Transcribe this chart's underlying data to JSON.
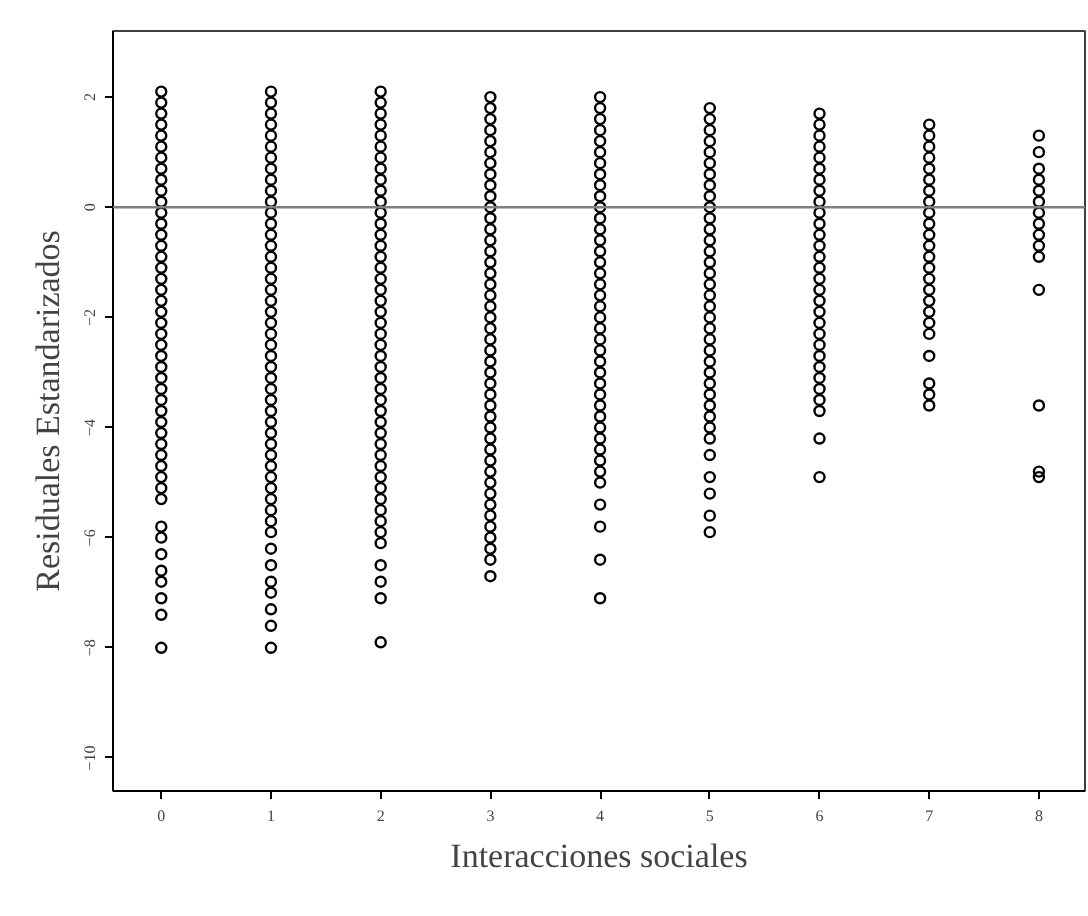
{
  "chart_data": {
    "type": "scatter",
    "xlabel": "Interacciones sociales",
    "ylabel": "Residuales Estandarizados",
    "xlim": [
      -0.44,
      8.42
    ],
    "ylim": [
      -10.6,
      3.2
    ],
    "xticks": [
      0,
      1,
      2,
      3,
      4,
      5,
      6,
      7,
      8
    ],
    "yticks": [
      -10,
      -8,
      -6,
      -4,
      -2,
      0,
      2
    ],
    "grid": false,
    "marker": "circle",
    "ref_lines": [
      {
        "axis": "y",
        "value": 0,
        "color": "#808080"
      }
    ],
    "series": [
      {
        "color": "#000000",
        "x": [
          0,
          0,
          0,
          0,
          0,
          0,
          0,
          0,
          0,
          0,
          0,
          0,
          0,
          0,
          0,
          0,
          0,
          0,
          0,
          0,
          0,
          0,
          0,
          0,
          0,
          0,
          0,
          0,
          0,
          0,
          0,
          0,
          0,
          0,
          0,
          0,
          0,
          0,
          0,
          0,
          0,
          0,
          0,
          0,
          0,
          0
        ],
        "values": [
          2.1,
          1.9,
          1.7,
          1.5,
          1.3,
          1.1,
          0.9,
          0.7,
          0.5,
          0.3,
          0.1,
          -0.1,
          -0.3,
          -0.5,
          -0.7,
          -0.9,
          -1.1,
          -1.3,
          -1.5,
          -1.7,
          -1.9,
          -2.1,
          -2.3,
          -2.5,
          -2.7,
          -2.9,
          -3.1,
          -3.3,
          -3.5,
          -3.7,
          -3.9,
          -4.1,
          -4.3,
          -4.5,
          -4.7,
          -4.9,
          -5.1,
          -5.3,
          -5.8,
          -6.0,
          -6.3,
          -6.6,
          -6.8,
          -7.1,
          -7.4,
          -8.0
        ]
      },
      {
        "color": "#000000",
        "x": [
          1,
          1,
          1,
          1,
          1,
          1,
          1,
          1,
          1,
          1,
          1,
          1,
          1,
          1,
          1,
          1,
          1,
          1,
          1,
          1,
          1,
          1,
          1,
          1,
          1,
          1,
          1,
          1,
          1,
          1,
          1,
          1,
          1,
          1,
          1,
          1,
          1,
          1,
          1,
          1,
          1,
          1,
          1,
          1,
          1,
          1,
          1,
          1
        ],
        "values": [
          2.1,
          1.9,
          1.7,
          1.5,
          1.3,
          1.1,
          0.9,
          0.7,
          0.5,
          0.3,
          0.1,
          -0.1,
          -0.3,
          -0.5,
          -0.7,
          -0.9,
          -1.1,
          -1.3,
          -1.5,
          -1.7,
          -1.9,
          -2.1,
          -2.3,
          -2.5,
          -2.7,
          -2.9,
          -3.1,
          -3.3,
          -3.5,
          -3.7,
          -3.9,
          -4.1,
          -4.3,
          -4.5,
          -4.7,
          -4.9,
          -5.1,
          -5.3,
          -5.5,
          -5.7,
          -5.9,
          -6.2,
          -6.5,
          -6.8,
          -7.0,
          -7.3,
          -7.6,
          -8.0
        ]
      },
      {
        "color": "#000000",
        "x": [
          2,
          2,
          2,
          2,
          2,
          2,
          2,
          2,
          2,
          2,
          2,
          2,
          2,
          2,
          2,
          2,
          2,
          2,
          2,
          2,
          2,
          2,
          2,
          2,
          2,
          2,
          2,
          2,
          2,
          2,
          2,
          2,
          2,
          2,
          2,
          2,
          2,
          2,
          2,
          2,
          2,
          2,
          2,
          2,
          2,
          2
        ],
        "values": [
          2.1,
          1.9,
          1.7,
          1.5,
          1.3,
          1.1,
          0.9,
          0.7,
          0.5,
          0.3,
          0.1,
          -0.1,
          -0.3,
          -0.5,
          -0.7,
          -0.9,
          -1.1,
          -1.3,
          -1.5,
          -1.7,
          -1.9,
          -2.1,
          -2.3,
          -2.5,
          -2.7,
          -2.9,
          -3.1,
          -3.3,
          -3.5,
          -3.7,
          -3.9,
          -4.1,
          -4.3,
          -4.5,
          -4.7,
          -4.9,
          -5.1,
          -5.3,
          -5.5,
          -5.7,
          -5.9,
          -6.1,
          -6.5,
          -6.8,
          -7.1,
          -7.9
        ]
      },
      {
        "color": "#000000",
        "x": [
          3,
          3,
          3,
          3,
          3,
          3,
          3,
          3,
          3,
          3,
          3,
          3,
          3,
          3,
          3,
          3,
          3,
          3,
          3,
          3,
          3,
          3,
          3,
          3,
          3,
          3,
          3,
          3,
          3,
          3,
          3,
          3,
          3,
          3,
          3,
          3,
          3,
          3,
          3,
          3,
          3,
          3,
          3,
          3
        ],
        "values": [
          2.0,
          1.8,
          1.6,
          1.4,
          1.2,
          1.0,
          0.8,
          0.6,
          0.4,
          0.2,
          0.0,
          -0.2,
          -0.4,
          -0.6,
          -0.8,
          -1.0,
          -1.2,
          -1.4,
          -1.6,
          -1.8,
          -2.0,
          -2.2,
          -2.4,
          -2.6,
          -2.8,
          -3.0,
          -3.2,
          -3.4,
          -3.6,
          -3.8,
          -4.0,
          -4.2,
          -4.4,
          -4.6,
          -4.8,
          -5.0,
          -5.2,
          -5.4,
          -5.6,
          -5.8,
          -6.0,
          -6.2,
          -6.4,
          -6.7
        ]
      },
      {
        "color": "#000000",
        "x": [
          4,
          4,
          4,
          4,
          4,
          4,
          4,
          4,
          4,
          4,
          4,
          4,
          4,
          4,
          4,
          4,
          4,
          4,
          4,
          4,
          4,
          4,
          4,
          4,
          4,
          4,
          4,
          4,
          4,
          4,
          4,
          4,
          4,
          4,
          4,
          4,
          4,
          4,
          4,
          4
        ],
        "values": [
          2.0,
          1.8,
          1.6,
          1.4,
          1.2,
          1.0,
          0.8,
          0.6,
          0.4,
          0.2,
          0.0,
          -0.2,
          -0.4,
          -0.6,
          -0.8,
          -1.0,
          -1.2,
          -1.4,
          -1.6,
          -1.8,
          -2.0,
          -2.2,
          -2.4,
          -2.6,
          -2.8,
          -3.0,
          -3.2,
          -3.4,
          -3.6,
          -3.8,
          -4.0,
          -4.2,
          -4.4,
          -4.6,
          -4.8,
          -5.0,
          -5.4,
          -5.8,
          -6.4,
          -7.1
        ]
      },
      {
        "color": "#000000",
        "x": [
          5,
          5,
          5,
          5,
          5,
          5,
          5,
          5,
          5,
          5,
          5,
          5,
          5,
          5,
          5,
          5,
          5,
          5,
          5,
          5,
          5,
          5,
          5,
          5,
          5,
          5,
          5,
          5,
          5,
          5,
          5,
          5,
          5,
          5,
          5,
          5
        ],
        "values": [
          1.8,
          1.6,
          1.4,
          1.2,
          1.0,
          0.8,
          0.6,
          0.4,
          0.2,
          0.0,
          -0.2,
          -0.4,
          -0.6,
          -0.8,
          -1.0,
          -1.2,
          -1.4,
          -1.6,
          -1.8,
          -2.0,
          -2.2,
          -2.4,
          -2.6,
          -2.8,
          -3.0,
          -3.2,
          -3.4,
          -3.6,
          -3.8,
          -4.0,
          -4.2,
          -4.5,
          -4.9,
          -5.2,
          -5.6,
          -5.9
        ]
      },
      {
        "color": "#000000",
        "x": [
          6,
          6,
          6,
          6,
          6,
          6,
          6,
          6,
          6,
          6,
          6,
          6,
          6,
          6,
          6,
          6,
          6,
          6,
          6,
          6,
          6,
          6,
          6,
          6,
          6,
          6,
          6,
          6,
          6,
          6
        ],
        "values": [
          1.7,
          1.5,
          1.3,
          1.1,
          0.9,
          0.7,
          0.5,
          0.3,
          0.1,
          -0.1,
          -0.3,
          -0.5,
          -0.7,
          -0.9,
          -1.1,
          -1.3,
          -1.5,
          -1.7,
          -1.9,
          -2.1,
          -2.3,
          -2.5,
          -2.7,
          -2.9,
          -3.1,
          -3.3,
          -3.5,
          -3.7,
          -4.2,
          -4.9
        ]
      },
      {
        "color": "#000000",
        "x": [
          7,
          7,
          7,
          7,
          7,
          7,
          7,
          7,
          7,
          7,
          7,
          7,
          7,
          7,
          7,
          7,
          7,
          7,
          7,
          7,
          7,
          7,
          7,
          7
        ],
        "values": [
          1.5,
          1.3,
          1.1,
          0.9,
          0.7,
          0.5,
          0.3,
          0.1,
          -0.1,
          -0.3,
          -0.5,
          -0.7,
          -0.9,
          -1.1,
          -1.3,
          -1.5,
          -1.7,
          -1.9,
          -2.1,
          -2.3,
          -2.7,
          -3.2,
          -3.4,
          -3.6
        ]
      },
      {
        "color": "#000000",
        "x": [
          8,
          8,
          8,
          8,
          8,
          8,
          8,
          8,
          8,
          8,
          8,
          8,
          8,
          8,
          8
        ],
        "values": [
          1.3,
          1.0,
          0.7,
          0.5,
          0.3,
          0.1,
          -0.1,
          -0.3,
          -0.5,
          -0.7,
          -0.9,
          -1.5,
          -3.6,
          -4.8,
          -4.9
        ]
      }
    ]
  }
}
